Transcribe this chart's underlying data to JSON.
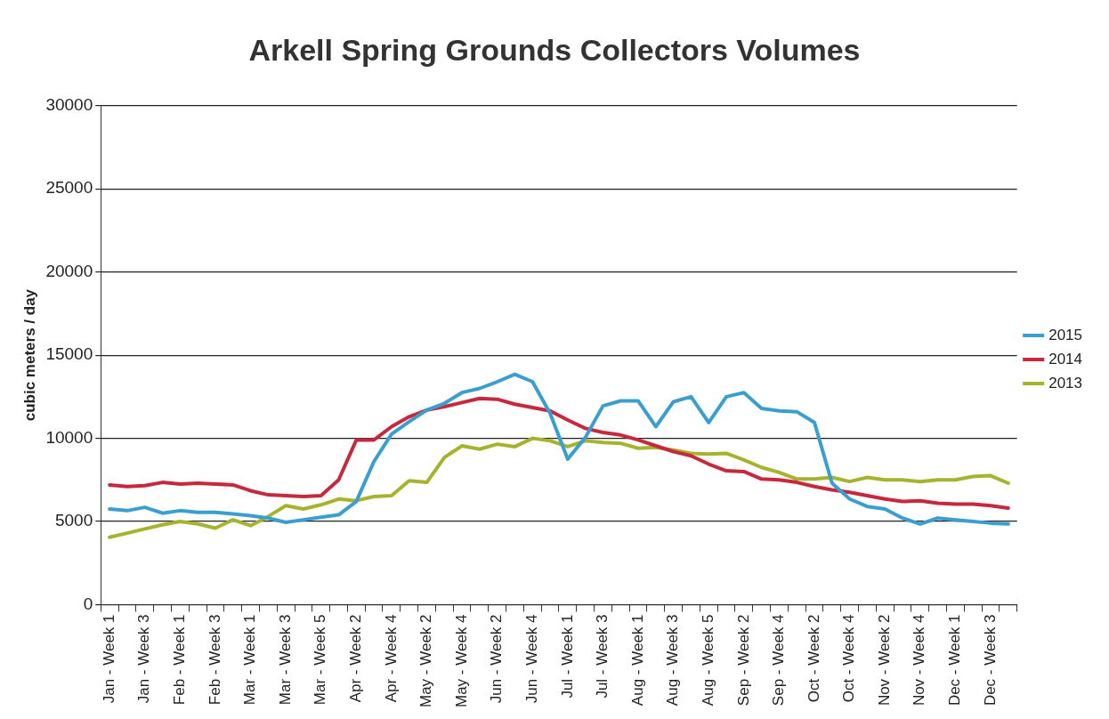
{
  "chart_data": {
    "type": "line",
    "title": "Arkell Spring Grounds Collectors Volumes",
    "ylabel": "cubic meters / day",
    "categories": [
      "Jan - Week 1",
      null,
      "Jan - Week 3",
      null,
      "Feb - Week 1",
      null,
      "Feb - Week 3",
      null,
      "Mar - Week 1",
      null,
      "Mar - Week 3",
      null,
      "Mar - Week 5",
      null,
      "Apr - Week 2",
      null,
      "Apr - Week 4",
      null,
      "May - Week 2",
      null,
      "May - Week 4",
      null,
      "Jun - Week 2",
      null,
      "Jun - Week 4",
      null,
      "Jul - Week 1",
      null,
      "Jul - Week 3",
      null,
      "Aug - Week 1",
      null,
      "Aug - Week 3",
      null,
      "Aug - Week 5",
      null,
      "Sep - Week 2",
      null,
      "Sep - Week 4",
      null,
      "Oct - Week 2",
      null,
      "Oct - Week 4",
      null,
      "Nov - Week 2",
      null,
      "Nov - Week 4",
      null,
      "Dec - Week 1",
      null,
      "Dec - Week 3",
      null
    ],
    "series": [
      {
        "name": "2015",
        "color": "#3a9fd0",
        "values": [
          5750,
          5650,
          5850,
          5500,
          5650,
          5550,
          5550,
          5450,
          5350,
          5200,
          4950,
          5100,
          5250,
          5400,
          6200,
          8600,
          10250,
          11000,
          11700,
          12100,
          12750,
          13000,
          13400,
          13850,
          13400,
          11500,
          8750,
          10050,
          11950,
          12250,
          12250,
          10700,
          12200,
          12500,
          10950,
          12500,
          12750,
          11800,
          11650,
          11600,
          10950,
          7300,
          6350,
          5900,
          5750,
          5200,
          4850,
          5200,
          5100,
          5000,
          4900,
          4850
        ]
      },
      {
        "name": "2014",
        "color": "#c8283c",
        "values": [
          7200,
          7100,
          7150,
          7350,
          7250,
          7300,
          7250,
          7200,
          6850,
          6600,
          6550,
          6500,
          6550,
          7500,
          9900,
          9900,
          10700,
          11300,
          11700,
          11900,
          12150,
          12400,
          12350,
          12050,
          11850,
          11650,
          11100,
          10600,
          10350,
          10200,
          9900,
          9550,
          9200,
          8950,
          8450,
          8050,
          8000,
          7550,
          7500,
          7350,
          7100,
          6900,
          6750,
          6550,
          6350,
          6200,
          6250,
          6100,
          6050,
          6050,
          5950,
          5800
        ]
      },
      {
        "name": "2013",
        "color": "#a5b42c",
        "values": [
          4050,
          4300,
          4550,
          4800,
          5000,
          4850,
          4600,
          5100,
          4750,
          5300,
          5950,
          5750,
          6000,
          6350,
          6250,
          6500,
          6550,
          7450,
          7350,
          8850,
          9550,
          9350,
          9650,
          9500,
          10000,
          9850,
          9500,
          9850,
          9750,
          9700,
          9400,
          9450,
          9300,
          9100,
          9050,
          9100,
          8700,
          8250,
          7950,
          7550,
          7550,
          7650,
          7400,
          7650,
          7500,
          7500,
          7400,
          7500,
          7500,
          7700,
          7750,
          7300
        ]
      }
    ],
    "ylim": [
      0,
      30000
    ],
    "yticks": [
      0,
      5000,
      10000,
      15000,
      20000,
      25000,
      30000
    ],
    "grid": "y",
    "legend": "right",
    "marker": "none",
    "line_style": "solid"
  }
}
